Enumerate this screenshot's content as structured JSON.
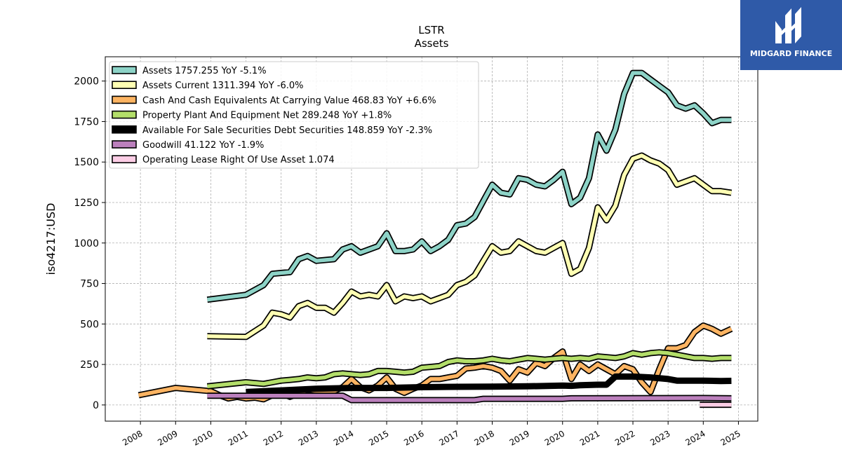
{
  "brand": {
    "name": "MIDGARD FINANCE",
    "color": "#2f5aa8"
  },
  "chart_data": {
    "type": "line",
    "title": "LSTR",
    "subtitle": "Assets",
    "ylabel": "iso4217:USD",
    "xlabel": "",
    "xlim": [
      2007.0,
      2025.55
    ],
    "ylim": [
      -100,
      2150
    ],
    "yticks": [
      0,
      250,
      500,
      750,
      1000,
      1250,
      1500,
      1750,
      2000
    ],
    "xticks": [
      2008,
      2009,
      2010,
      2011,
      2012,
      2013,
      2014,
      2015,
      2016,
      2017,
      2018,
      2019,
      2020,
      2021,
      2022,
      2023,
      2024,
      2025
    ],
    "grid": true,
    "legend_position": "top-left",
    "series": [
      {
        "name": "Assets",
        "legend": "Assets  1757.255 YoY -5.1%",
        "color": "#8dd3c7",
        "x": [
          2009.9,
          2011.0,
          2011.5,
          2011.75,
          2012.0,
          2012.25,
          2012.5,
          2012.75,
          2013.0,
          2013.5,
          2013.75,
          2014.0,
          2014.25,
          2014.5,
          2014.75,
          2015.0,
          2015.25,
          2015.5,
          2015.75,
          2016.0,
          2016.25,
          2016.5,
          2016.75,
          2017.0,
          2017.25,
          2017.5,
          2017.75,
          2018.0,
          2018.25,
          2018.5,
          2018.75,
          2019.0,
          2019.25,
          2019.5,
          2019.75,
          2020.0,
          2020.25,
          2020.5,
          2020.75,
          2021.0,
          2021.25,
          2021.5,
          2021.75,
          2022.0,
          2022.25,
          2022.5,
          2022.75,
          2023.0,
          2023.25,
          2023.5,
          2023.75,
          2024.0,
          2024.25,
          2024.5,
          2024.8
        ],
        "values": [
          650,
          680,
          740,
          810,
          815,
          820,
          900,
          920,
          890,
          900,
          960,
          980,
          940,
          960,
          980,
          1060,
          950,
          950,
          960,
          1010,
          950,
          980,
          1020,
          1110,
          1120,
          1160,
          1260,
          1360,
          1310,
          1300,
          1400,
          1390,
          1360,
          1350,
          1390,
          1440,
          1240,
          1280,
          1400,
          1670,
          1570,
          1700,
          1920,
          2050,
          2050,
          2010,
          1970,
          1930,
          1850,
          1830,
          1850,
          1800,
          1740,
          1760,
          1760
        ]
      },
      {
        "name": "Assets Current",
        "legend": "Assets Current  1311.394 YoY -6.0%",
        "color": "#ffffb3",
        "x": [
          2009.9,
          2011.0,
          2011.5,
          2011.75,
          2012.0,
          2012.25,
          2012.5,
          2012.75,
          2013.0,
          2013.25,
          2013.5,
          2013.75,
          2014.0,
          2014.25,
          2014.5,
          2014.75,
          2015.0,
          2015.25,
          2015.5,
          2015.75,
          2016.0,
          2016.25,
          2016.5,
          2016.75,
          2017.0,
          2017.25,
          2017.5,
          2017.75,
          2018.0,
          2018.25,
          2018.5,
          2018.75,
          2019.0,
          2019.25,
          2019.5,
          2019.75,
          2020.0,
          2020.25,
          2020.5,
          2020.75,
          2021.0,
          2021.25,
          2021.5,
          2021.75,
          2022.0,
          2022.25,
          2022.5,
          2022.75,
          2023.0,
          2023.25,
          2023.5,
          2023.75,
          2024.0,
          2024.25,
          2024.5,
          2024.8
        ],
        "values": [
          425,
          420,
          490,
          570,
          560,
          540,
          610,
          630,
          600,
          600,
          570,
          630,
          700,
          670,
          680,
          670,
          740,
          640,
          670,
          660,
          670,
          640,
          660,
          680,
          740,
          760,
          800,
          890,
          980,
          940,
          950,
          1010,
          980,
          950,
          940,
          970,
          1000,
          810,
          840,
          970,
          1220,
          1140,
          1230,
          1420,
          1520,
          1540,
          1510,
          1490,
          1450,
          1360,
          1380,
          1400,
          1360,
          1320,
          1320,
          1310
        ]
      },
      {
        "name": "Cash And Cash Equivalents At Carrying Value",
        "legend": "Cash And Cash Equivalents At Carrying Value  468.83 YoY +6.6%",
        "color": "#fdb462",
        "x": [
          2007.95,
          2009.0,
          2010.0,
          2010.25,
          2010.5,
          2010.75,
          2011.0,
          2011.25,
          2011.5,
          2011.75,
          2012.0,
          2012.25,
          2012.5,
          2012.75,
          2013.0,
          2013.25,
          2013.5,
          2013.75,
          2014.0,
          2014.25,
          2014.5,
          2014.75,
          2015.0,
          2015.25,
          2015.5,
          2015.75,
          2016.0,
          2016.25,
          2016.5,
          2016.75,
          2017.0,
          2017.25,
          2017.5,
          2017.75,
          2018.0,
          2018.25,
          2018.5,
          2018.75,
          2019.0,
          2019.25,
          2019.5,
          2019.75,
          2020.0,
          2020.25,
          2020.5,
          2020.75,
          2021.0,
          2021.25,
          2021.5,
          2021.75,
          2022.0,
          2022.25,
          2022.5,
          2022.75,
          2023.0,
          2023.25,
          2023.5,
          2023.75,
          2024.0,
          2024.25,
          2024.5,
          2024.8
        ],
        "values": [
          60,
          105,
          85,
          60,
          40,
          50,
          40,
          45,
          35,
          60,
          75,
          50,
          70,
          95,
          85,
          80,
          85,
          110,
          160,
          110,
          90,
          120,
          170,
          100,
          75,
          100,
          120,
          160,
          160,
          170,
          180,
          225,
          230,
          240,
          230,
          210,
          150,
          220,
          200,
          260,
          240,
          290,
          330,
          160,
          250,
          210,
          250,
          220,
          190,
          240,
          220,
          140,
          80,
          220,
          350,
          350,
          370,
          450,
          490,
          470,
          440,
          470
        ]
      },
      {
        "name": "Property Plant And Equipment Net",
        "legend": "Property Plant And Equipment Net  289.248 YoY +1.8%",
        "color": "#b3de69",
        "x": [
          2009.9,
          2011.0,
          2011.5,
          2011.75,
          2012.0,
          2012.25,
          2012.5,
          2012.75,
          2013.0,
          2013.25,
          2013.5,
          2013.75,
          2014.0,
          2014.25,
          2014.5,
          2014.75,
          2015.0,
          2015.25,
          2015.5,
          2015.75,
          2016.0,
          2016.25,
          2016.5,
          2016.75,
          2017.0,
          2017.25,
          2017.5,
          2017.75,
          2018.0,
          2018.25,
          2018.5,
          2018.75,
          2019.0,
          2019.25,
          2019.5,
          2019.75,
          2020.0,
          2020.25,
          2020.5,
          2020.75,
          2021.0,
          2021.25,
          2021.5,
          2021.75,
          2022.0,
          2022.25,
          2022.5,
          2022.75,
          2023.0,
          2023.25,
          2023.5,
          2023.75,
          2024.0,
          2024.25,
          2024.5,
          2024.8
        ],
        "values": [
          115,
          140,
          130,
          140,
          150,
          155,
          160,
          170,
          165,
          170,
          190,
          195,
          190,
          185,
          190,
          210,
          210,
          205,
          200,
          205,
          230,
          235,
          240,
          265,
          275,
          270,
          270,
          275,
          285,
          275,
          270,
          280,
          290,
          285,
          280,
          285,
          290,
          285,
          290,
          285,
          300,
          295,
          290,
          300,
          320,
          310,
          320,
          325,
          320,
          310,
          300,
          290,
          290,
          285,
          290,
          290
        ]
      },
      {
        "name": "Available For Sale Securities Debt Securities",
        "legend": "Available For Sale Securities Debt Securities  148.859 YoY -2.3%",
        "color": "#000000",
        "x": [
          2011.0,
          2012.0,
          2013.0,
          2014.0,
          2015.0,
          2016.0,
          2017.0,
          2018.0,
          2019.0,
          2020.0,
          2020.25,
          2020.5,
          2021.0,
          2021.25,
          2021.5,
          2022.0,
          2022.5,
          2023.0,
          2023.25,
          2024.0,
          2024.5,
          2024.8
        ],
        "values": [
          80,
          90,
          100,
          105,
          105,
          110,
          112,
          113,
          115,
          120,
          118,
          122,
          125,
          125,
          175,
          175,
          170,
          160,
          150,
          150,
          148,
          149
        ]
      },
      {
        "name": "Goodwill",
        "legend": "Goodwill  41.122 YoY -1.9%",
        "color": "#bc80bd",
        "x": [
          2009.9,
          2013.75,
          2014.0,
          2017.5,
          2017.75,
          2020.0,
          2020.25,
          2024.0,
          2024.8
        ],
        "values": [
          57,
          57,
          30,
          30,
          38,
          38,
          41,
          43,
          41
        ]
      },
      {
        "name": "Operating Lease Right Of Use Asset",
        "legend": "Operating Lease Right Of Use Asset  1.074",
        "color": "#fccde5",
        "x": [
          2023.9,
          2024.8
        ],
        "values": [
          1.074,
          1.074
        ]
      }
    ]
  }
}
